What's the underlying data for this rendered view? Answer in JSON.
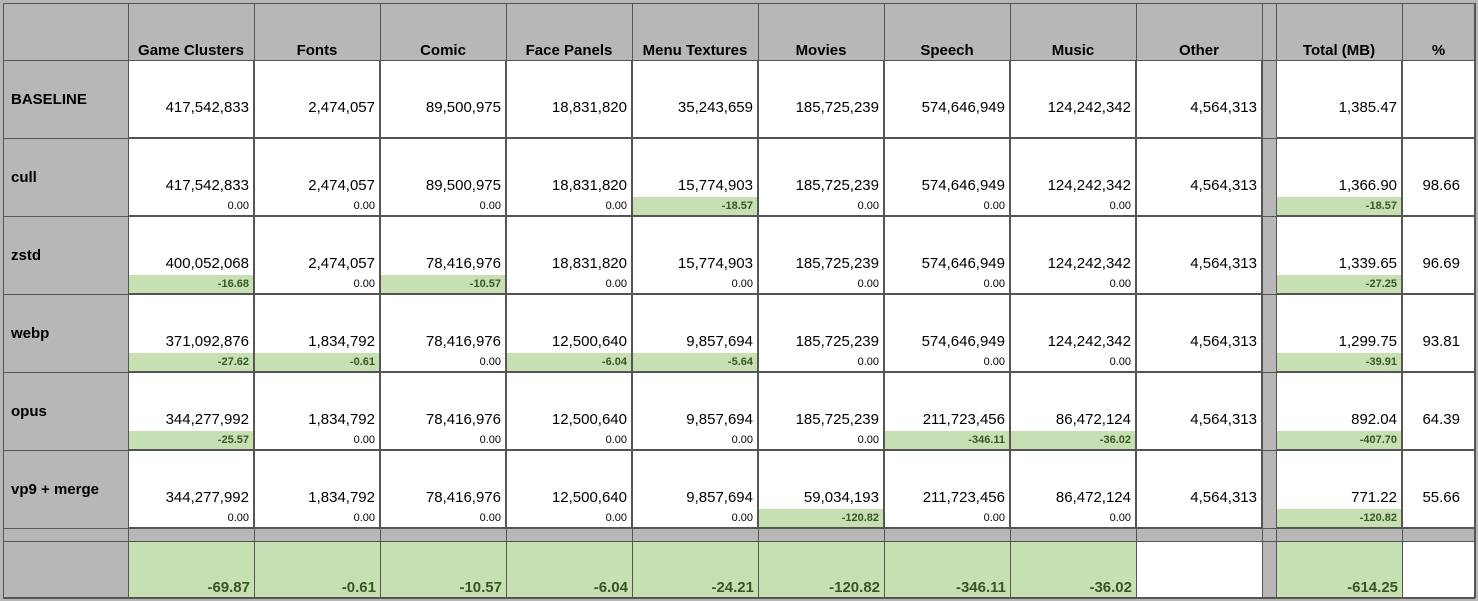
{
  "columns": [
    "Game Clusters",
    "Fonts",
    "Comic",
    "Face Panels",
    "Menu Textures",
    "Movies",
    "Speech",
    "Music",
    "Other"
  ],
  "total_header": "Total (MB)",
  "pct_header": "%",
  "rows": [
    {
      "label": "BASELINE",
      "values": [
        "417,542,833",
        "2,474,057",
        "89,500,975",
        "18,831,820",
        "35,243,659",
        "185,725,239",
        "574,646,949",
        "124,242,342",
        "4,564,313"
      ],
      "deltas": null,
      "highlight": [],
      "total": "1,385.47",
      "total_delta": null,
      "pct": ""
    },
    {
      "label": "cull",
      "values": [
        "417,542,833",
        "2,474,057",
        "89,500,975",
        "18,831,820",
        "15,774,903",
        "185,725,239",
        "574,646,949",
        "124,242,342",
        "4,564,313"
      ],
      "deltas": [
        "0.00",
        "0.00",
        "0.00",
        "0.00",
        "-18.57",
        "0.00",
        "0.00",
        "0.00",
        ""
      ],
      "highlight": [
        4
      ],
      "total": "1,366.90",
      "total_delta": "-18.57",
      "pct": "98.66"
    },
    {
      "label": "zstd",
      "values": [
        "400,052,068",
        "2,474,057",
        "78,416,976",
        "18,831,820",
        "15,774,903",
        "185,725,239",
        "574,646,949",
        "124,242,342",
        "4,564,313"
      ],
      "deltas": [
        "-16.68",
        "0.00",
        "-10.57",
        "0.00",
        "0.00",
        "0.00",
        "0.00",
        "0.00",
        ""
      ],
      "highlight": [
        0,
        2
      ],
      "total": "1,339.65",
      "total_delta": "-27.25",
      "pct": "96.69"
    },
    {
      "label": "webp",
      "values": [
        "371,092,876",
        "1,834,792",
        "78,416,976",
        "12,500,640",
        "9,857,694",
        "185,725,239",
        "574,646,949",
        "124,242,342",
        "4,564,313"
      ],
      "deltas": [
        "-27.62",
        "-0.61",
        "0.00",
        "-6.04",
        "-5.64",
        "0.00",
        "0.00",
        "0.00",
        ""
      ],
      "highlight": [
        0,
        1,
        3,
        4
      ],
      "total": "1,299.75",
      "total_delta": "-39.91",
      "pct": "93.81"
    },
    {
      "label": "opus",
      "values": [
        "344,277,992",
        "1,834,792",
        "78,416,976",
        "12,500,640",
        "9,857,694",
        "185,725,239",
        "211,723,456",
        "86,472,124",
        "4,564,313"
      ],
      "deltas": [
        "-25.57",
        "0.00",
        "0.00",
        "0.00",
        "0.00",
        "0.00",
        "-346.11",
        "-36.02",
        ""
      ],
      "highlight": [
        0,
        6,
        7
      ],
      "total": "892.04",
      "total_delta": "-407.70",
      "pct": "64.39"
    },
    {
      "label": "vp9 + merge",
      "values": [
        "344,277,992",
        "1,834,792",
        "78,416,976",
        "12,500,640",
        "9,857,694",
        "59,034,193",
        "211,723,456",
        "86,472,124",
        "4,564,313"
      ],
      "deltas": [
        "0.00",
        "0.00",
        "0.00",
        "0.00",
        "0.00",
        "-120.82",
        "0.00",
        "0.00",
        ""
      ],
      "highlight": [
        5
      ],
      "total": "771.22",
      "total_delta": "-120.82",
      "pct": "55.66"
    }
  ],
  "summary": {
    "values": [
      "-69.87",
      "-0.61",
      "-10.57",
      "-6.04",
      "-24.21",
      "-120.82",
      "-346.11",
      "-36.02",
      ""
    ],
    "total": "-614.25",
    "pct": ""
  },
  "colors": {
    "highlight_fill": "#c6e0b4",
    "highlight_text": "#375623",
    "header_fill": "#b7b7b7"
  }
}
